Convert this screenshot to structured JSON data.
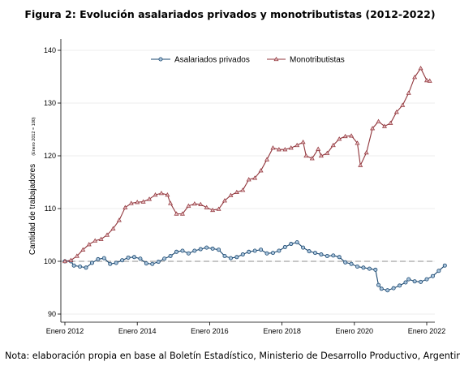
{
  "figure": {
    "title": "Figura 2: Evolución asalariados privados y monotributistas (2012-2022)",
    "note": "Nota: elaboración propia en base al Boletín Estadístico, Ministerio de Desarrollo Productivo, Argentina."
  },
  "chart_data": {
    "type": "line",
    "title": "Figura 2: Evolución asalariados privados y monotributistas (2012-2022)",
    "ylabel": "Cantidad de trabajadores",
    "ylabel_sub": "(Enero 2012 = 100)",
    "xlabel": "",
    "ylim": [
      89,
      141
    ],
    "yticks": [
      90,
      100,
      110,
      120,
      130,
      140
    ],
    "xticks": [
      "Enero 2012",
      "Enero 2014",
      "Enero 2016",
      "Enero 2018",
      "Enero 2020",
      "Enero 2022"
    ],
    "x_range": [
      "2012-01",
      "2022-02"
    ],
    "reference_line": {
      "y": 100,
      "style": "dashed",
      "color": "#b3b3b3"
    },
    "grid": {
      "horizontal": true,
      "vertical": false
    },
    "legend": {
      "placement": "top-center"
    },
    "series": [
      {
        "name": "Asalariados privados",
        "color": "#1a476f",
        "marker": "circle",
        "points": [
          [
            "2012-01",
            100.0
          ],
          [
            "2012-03",
            100.0
          ],
          [
            "2012-04",
            99.2
          ],
          [
            "2012-06",
            99.0
          ],
          [
            "2012-08",
            98.8
          ],
          [
            "2012-10",
            99.7
          ],
          [
            "2012-12",
            100.4
          ],
          [
            "2013-02",
            100.6
          ],
          [
            "2013-04",
            99.5
          ],
          [
            "2013-06",
            99.7
          ],
          [
            "2013-08",
            100.2
          ],
          [
            "2013-10",
            100.7
          ],
          [
            "2013-12",
            100.8
          ],
          [
            "2014-02",
            100.5
          ],
          [
            "2014-04",
            99.6
          ],
          [
            "2014-06",
            99.5
          ],
          [
            "2014-08",
            99.9
          ],
          [
            "2014-10",
            100.5
          ],
          [
            "2014-12",
            101.0
          ],
          [
            "2015-02",
            101.8
          ],
          [
            "2015-04",
            102.0
          ],
          [
            "2015-06",
            101.5
          ],
          [
            "2015-08",
            102.0
          ],
          [
            "2015-10",
            102.3
          ],
          [
            "2015-12",
            102.6
          ],
          [
            "2016-02",
            102.4
          ],
          [
            "2016-04",
            102.2
          ],
          [
            "2016-06",
            101.0
          ],
          [
            "2016-08",
            100.6
          ],
          [
            "2016-10",
            100.8
          ],
          [
            "2016-12",
            101.3
          ],
          [
            "2017-02",
            101.8
          ],
          [
            "2017-04",
            102.0
          ],
          [
            "2017-06",
            102.2
          ],
          [
            "2017-08",
            101.5
          ],
          [
            "2017-10",
            101.6
          ],
          [
            "2017-12",
            102.0
          ],
          [
            "2018-02",
            102.7
          ],
          [
            "2018-04",
            103.3
          ],
          [
            "2018-06",
            103.6
          ],
          [
            "2018-08",
            102.6
          ],
          [
            "2018-10",
            101.9
          ],
          [
            "2018-12",
            101.6
          ],
          [
            "2019-02",
            101.3
          ],
          [
            "2019-04",
            101.0
          ],
          [
            "2019-06",
            101.1
          ],
          [
            "2019-08",
            100.8
          ],
          [
            "2019-10",
            99.8
          ],
          [
            "2019-12",
            99.5
          ],
          [
            "2020-02",
            99.0
          ],
          [
            "2020-04",
            98.8
          ],
          [
            "2020-06",
            98.6
          ],
          [
            "2020-08",
            98.4
          ],
          [
            "2020-09",
            95.5
          ],
          [
            "2020-10",
            94.8
          ],
          [
            "2020-12",
            94.5
          ],
          [
            "2021-02",
            94.9
          ],
          [
            "2021-04",
            95.4
          ],
          [
            "2021-06",
            96.0
          ],
          [
            "2021-07",
            96.6
          ],
          [
            "2021-09",
            96.2
          ],
          [
            "2021-11",
            96.1
          ],
          [
            "2022-01",
            96.6
          ],
          [
            "2022-03",
            97.2
          ],
          [
            "2022-05",
            98.2
          ],
          [
            "2022-07",
            99.2
          ]
        ]
      },
      {
        "name": "Monotributistas",
        "color": "#90353b",
        "marker": "triangle",
        "points": [
          [
            "2012-01",
            100.0
          ],
          [
            "2012-03",
            100.2
          ],
          [
            "2012-05",
            101.0
          ],
          [
            "2012-07",
            102.2
          ],
          [
            "2012-09",
            103.2
          ],
          [
            "2012-11",
            103.9
          ],
          [
            "2013-01",
            104.2
          ],
          [
            "2013-03",
            105.0
          ],
          [
            "2013-05",
            106.2
          ],
          [
            "2013-07",
            107.8
          ],
          [
            "2013-09",
            110.2
          ],
          [
            "2013-11",
            111.0
          ],
          [
            "2014-01",
            111.2
          ],
          [
            "2014-03",
            111.3
          ],
          [
            "2014-05",
            111.8
          ],
          [
            "2014-07",
            112.6
          ],
          [
            "2014-09",
            112.9
          ],
          [
            "2014-11",
            112.6
          ],
          [
            "2014-12",
            111.0
          ],
          [
            "2015-02",
            109.0
          ],
          [
            "2015-04",
            109.0
          ],
          [
            "2015-06",
            110.5
          ],
          [
            "2015-08",
            110.9
          ],
          [
            "2015-10",
            110.8
          ],
          [
            "2015-12",
            110.2
          ],
          [
            "2016-02",
            109.7
          ],
          [
            "2016-04",
            109.9
          ],
          [
            "2016-06",
            111.5
          ],
          [
            "2016-08",
            112.5
          ],
          [
            "2016-10",
            113.1
          ],
          [
            "2016-12",
            113.5
          ],
          [
            "2017-02",
            115.5
          ],
          [
            "2017-04",
            115.8
          ],
          [
            "2017-06",
            117.2
          ],
          [
            "2017-08",
            119.3
          ],
          [
            "2017-10",
            121.5
          ],
          [
            "2017-12",
            121.2
          ],
          [
            "2018-02",
            121.2
          ],
          [
            "2018-04",
            121.5
          ],
          [
            "2018-06",
            122.0
          ],
          [
            "2018-08",
            122.6
          ],
          [
            "2018-09",
            120.0
          ],
          [
            "2018-11",
            119.5
          ],
          [
            "2019-01",
            121.3
          ],
          [
            "2019-02",
            120.0
          ],
          [
            "2019-04",
            120.5
          ],
          [
            "2019-06",
            122.0
          ],
          [
            "2019-08",
            123.2
          ],
          [
            "2019-10",
            123.7
          ],
          [
            "2019-12",
            123.8
          ],
          [
            "2020-02",
            122.4
          ],
          [
            "2020-03",
            118.2
          ],
          [
            "2020-05",
            120.6
          ],
          [
            "2020-07",
            125.2
          ],
          [
            "2020-09",
            126.5
          ],
          [
            "2020-11",
            125.6
          ],
          [
            "2021-01",
            126.2
          ],
          [
            "2021-03",
            128.3
          ],
          [
            "2021-05",
            129.6
          ],
          [
            "2021-07",
            131.9
          ],
          [
            "2021-09",
            134.9
          ],
          [
            "2021-11",
            136.6
          ],
          [
            "2022-01",
            134.3
          ],
          [
            "2022-02",
            134.2
          ]
        ]
      }
    ]
  }
}
